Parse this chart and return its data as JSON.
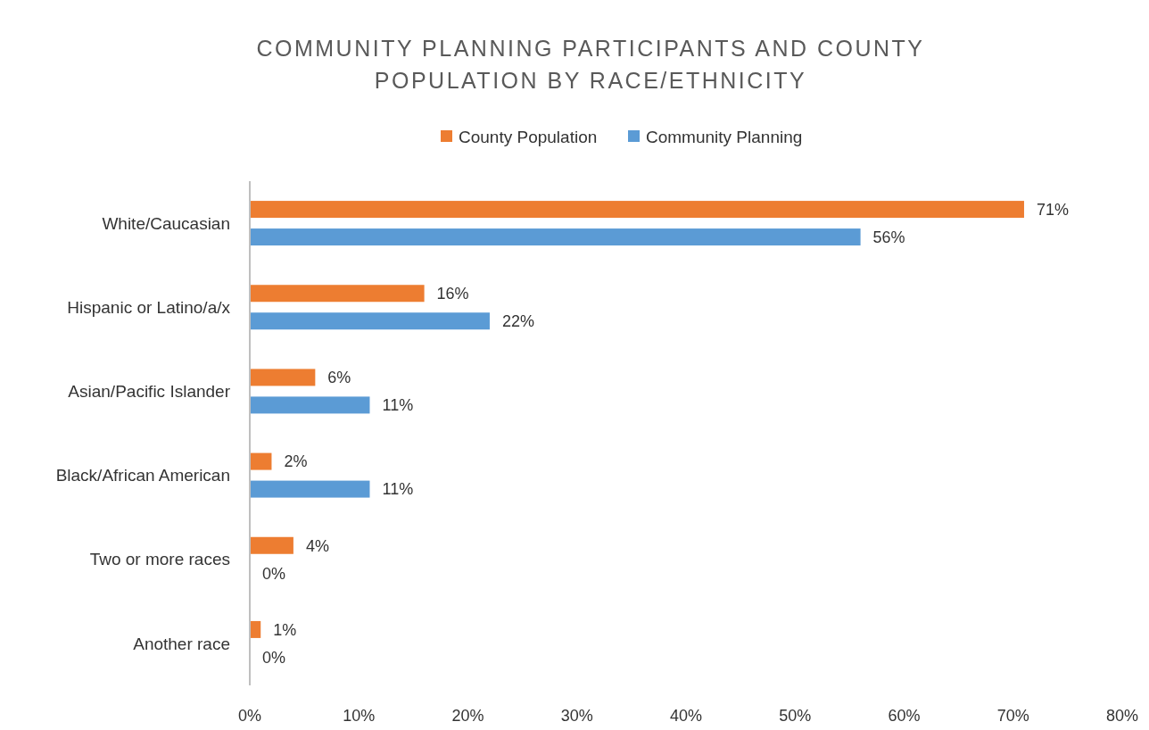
{
  "chart_data": {
    "type": "bar",
    "orientation": "horizontal",
    "title": "COMMUNITY PLANNING PARTICIPANTS AND COUNTY POPULATION BY RACE/ETHNICITY",
    "categories": [
      "White/Caucasian",
      "Hispanic or Latino/a/x",
      "Asian/Pacific Islander",
      "Black/African American",
      "Two or more races",
      "Another race"
    ],
    "series": [
      {
        "name": "County Population",
        "color": "#ed7d31",
        "values": [
          71,
          16,
          6,
          2,
          4,
          1
        ],
        "value_labels": [
          "71%",
          "16%",
          "6%",
          "2%",
          "4%",
          "1%"
        ]
      },
      {
        "name": "Community Planning",
        "color": "#5b9bd5",
        "values": [
          56,
          22,
          11,
          11,
          0,
          0
        ],
        "value_labels": [
          "56%",
          "22%",
          "11%",
          "11%",
          "0%",
          "0%"
        ]
      }
    ],
    "xlim": [
      0,
      80
    ],
    "xticks": [
      {
        "value": 0,
        "label": "0%"
      },
      {
        "value": 10,
        "label": "10%"
      },
      {
        "value": 20,
        "label": "20%"
      },
      {
        "value": 30,
        "label": "30%"
      },
      {
        "value": 40,
        "label": "40%"
      },
      {
        "value": 50,
        "label": "50%"
      },
      {
        "value": 60,
        "label": "60%"
      },
      {
        "value": 70,
        "label": "70%"
      },
      {
        "value": 80,
        "label": "80%"
      }
    ],
    "legend": "top",
    "grid": false
  }
}
